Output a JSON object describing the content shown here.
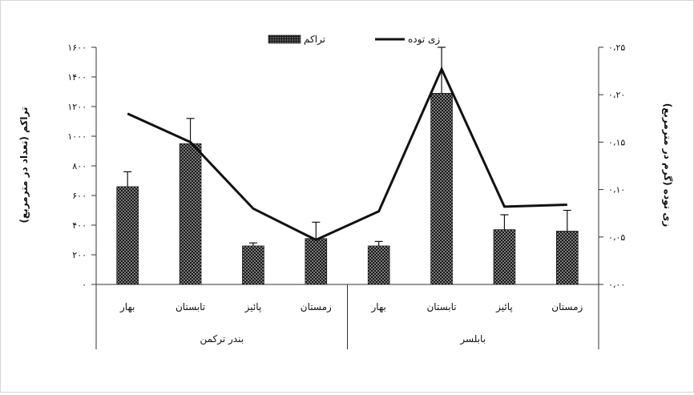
{
  "chart_data": {
    "type": "bar",
    "groups": [
      {
        "name": "بندر ترکمن",
        "categories": [
          "بهار",
          "تابستان",
          "پائیز",
          "زمستان"
        ]
      },
      {
        "name": "بابلسر",
        "categories": [
          "بهار",
          "تابستان",
          "پائیز",
          "زمستان"
        ]
      }
    ],
    "series": [
      {
        "name": "تراکم",
        "kind": "bar",
        "axis": "left",
        "values": [
          660,
          950,
          260,
          310,
          260,
          1290,
          370,
          360
        ],
        "errors": [
          100,
          170,
          20,
          110,
          30,
          310,
          100,
          140
        ]
      },
      {
        "name": "زی توده",
        "kind": "line",
        "axis": "right",
        "values": [
          0.18,
          0.15,
          0.08,
          0.047,
          0.077,
          0.227,
          0.082,
          0.084
        ]
      }
    ],
    "left_axis": {
      "label": "تراکم (تعداد در مترمربع)",
      "min": 0,
      "max": 1600,
      "step": 200,
      "tick_labels": [
        "۰",
        "۲۰۰",
        "۴۰۰",
        "۶۰۰",
        "۸۰۰",
        "۱۰۰۰",
        "۱۲۰۰",
        "۱۴۰۰",
        "۱۶۰۰"
      ]
    },
    "right_axis": {
      "label": "زی توده (گرم در مترمربع)",
      "min": 0,
      "max": 0.25,
      "step": 0.05,
      "tick_labels": [
        "۰،۰۰",
        "۰،۰۵",
        "۰،۱۰",
        "۰،۱۵",
        "۰،۲۰",
        "۰،۲۵"
      ]
    },
    "legend": {
      "position": "top",
      "entries": [
        "تراکم",
        "زی توده"
      ]
    },
    "grid": false,
    "colors": {
      "bar": "#1a1a1a",
      "bar_pattern_dot": "#bdbdbd",
      "line": "#111111",
      "axis": "#333333"
    }
  }
}
